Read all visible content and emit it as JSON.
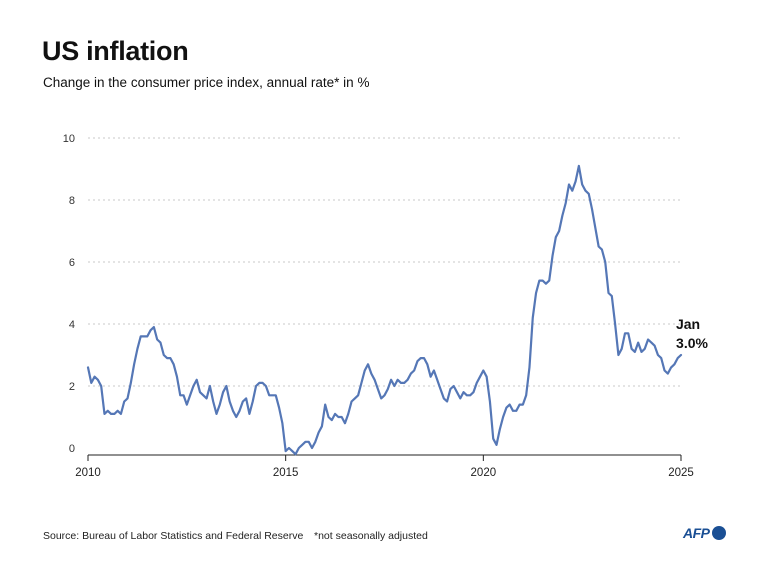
{
  "header": {
    "title": "US inflation",
    "subtitle": "Change in the consumer price index, annual rate* in %"
  },
  "footer": {
    "source": "Source: Bureau of Labor Statistics and Federal Reserve",
    "note": "*not seasonally adjusted",
    "logo": "AFP"
  },
  "colors": {
    "line": "#5577b6",
    "grid": "#c8c8c8",
    "logo": "#1a4f94"
  },
  "chart_data": {
    "type": "line",
    "title": "US inflation",
    "xlabel": "",
    "ylabel": "",
    "xlim": [
      2010,
      2025
    ],
    "ylim": [
      0,
      10
    ],
    "x_ticks": [
      2010,
      2015,
      2020,
      2025
    ],
    "y_ticks": [
      0,
      2,
      4,
      6,
      8,
      10
    ],
    "grid": "horizontal dashed",
    "start": "2010-01",
    "frequency": "monthly",
    "series": [
      {
        "name": "CPI annual rate (%)",
        "values": [
          2.6,
          2.1,
          2.3,
          2.2,
          2.0,
          1.1,
          1.2,
          1.1,
          1.1,
          1.2,
          1.1,
          1.5,
          1.6,
          2.1,
          2.7,
          3.2,
          3.6,
          3.6,
          3.6,
          3.8,
          3.9,
          3.5,
          3.4,
          3.0,
          2.9,
          2.9,
          2.7,
          2.3,
          1.7,
          1.7,
          1.4,
          1.7,
          2.0,
          2.2,
          1.8,
          1.7,
          1.6,
          2.0,
          1.5,
          1.1,
          1.4,
          1.8,
          2.0,
          1.5,
          1.2,
          1.0,
          1.2,
          1.5,
          1.6,
          1.1,
          1.5,
          2.0,
          2.1,
          2.1,
          2.0,
          1.7,
          1.7,
          1.7,
          1.3,
          0.8,
          -0.1,
          0.0,
          -0.1,
          -0.2,
          0.0,
          0.1,
          0.2,
          0.2,
          0.0,
          0.2,
          0.5,
          0.7,
          1.4,
          1.0,
          0.9,
          1.1,
          1.0,
          1.0,
          0.8,
          1.1,
          1.5,
          1.6,
          1.7,
          2.1,
          2.5,
          2.7,
          2.4,
          2.2,
          1.9,
          1.6,
          1.7,
          1.9,
          2.2,
          2.0,
          2.2,
          2.1,
          2.1,
          2.2,
          2.4,
          2.5,
          2.8,
          2.9,
          2.9,
          2.7,
          2.3,
          2.5,
          2.2,
          1.9,
          1.6,
          1.5,
          1.9,
          2.0,
          1.8,
          1.6,
          1.8,
          1.7,
          1.7,
          1.8,
          2.1,
          2.3,
          2.5,
          2.3,
          1.5,
          0.3,
          0.1,
          0.6,
          1.0,
          1.3,
          1.4,
          1.2,
          1.2,
          1.4,
          1.4,
          1.7,
          2.6,
          4.2,
          5.0,
          5.4,
          5.4,
          5.3,
          5.4,
          6.2,
          6.8,
          7.0,
          7.5,
          7.9,
          8.5,
          8.3,
          8.6,
          9.1,
          8.5,
          8.3,
          8.2,
          7.7,
          7.1,
          6.5,
          6.4,
          6.0,
          5.0,
          4.9,
          4.0,
          3.0,
          3.2,
          3.7,
          3.7,
          3.2,
          3.1,
          3.4,
          3.1,
          3.2,
          3.5,
          3.4,
          3.3,
          3.0,
          2.9,
          2.5,
          2.4,
          2.6,
          2.7,
          2.9,
          3.0
        ]
      }
    ],
    "annotation": {
      "label": "Jan",
      "value_label": "3.0%"
    }
  }
}
